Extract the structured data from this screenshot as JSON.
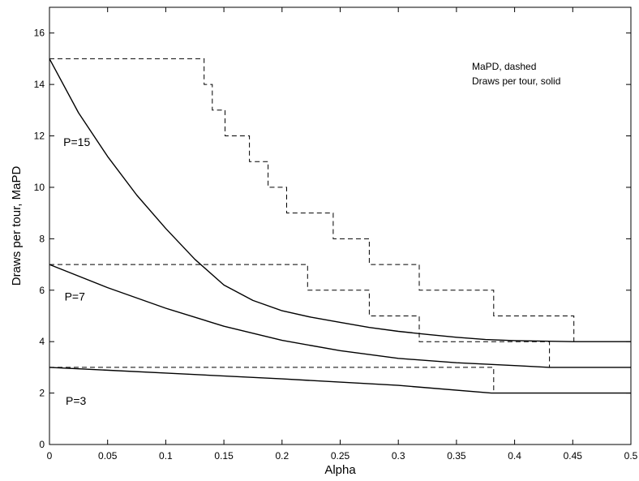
{
  "chart_data": {
    "type": "line",
    "title": "",
    "xlabel": "Alpha",
    "ylabel": "Draws per tour, MaPD",
    "xlim": [
      0,
      0.5
    ],
    "ylim": [
      0,
      17
    ],
    "xticks": [
      0,
      0.05,
      0.1,
      0.15,
      0.2,
      0.25,
      0.3,
      0.35,
      0.4,
      0.45,
      0.5
    ],
    "xtick_labels": [
      "0",
      "0.05",
      "0.1",
      "0.15",
      "0.2",
      "0.25",
      "0.3",
      "0.35",
      "0.4",
      "0.45",
      "0.5"
    ],
    "yticks": [
      0,
      2,
      4,
      6,
      8,
      10,
      12,
      14,
      16
    ],
    "ytick_labels": [
      "0",
      "2",
      "4",
      "6",
      "8",
      "10",
      "12",
      "14",
      "16"
    ],
    "grid": false,
    "legend_lines": [
      "MaPD, dashed",
      "Draws per tour, solid"
    ],
    "legend_position": "top-right",
    "series": [
      {
        "label": "P=15",
        "style": "solid",
        "x": [
          0,
          0.025,
          0.05,
          0.075,
          0.1,
          0.125,
          0.15,
          0.175,
          0.2,
          0.225,
          0.25,
          0.275,
          0.3,
          0.325,
          0.35,
          0.375,
          0.4,
          0.45,
          0.5
        ],
        "y": [
          15.0,
          12.9,
          11.2,
          9.7,
          8.4,
          7.2,
          6.2,
          5.6,
          5.2,
          4.95,
          4.75,
          4.55,
          4.4,
          4.28,
          4.17,
          4.08,
          4.04,
          4.0,
          4.0
        ]
      },
      {
        "label": "P=7",
        "style": "solid",
        "x": [
          0,
          0.05,
          0.1,
          0.15,
          0.2,
          0.25,
          0.3,
          0.35,
          0.4,
          0.43,
          0.5
        ],
        "y": [
          7.0,
          6.1,
          5.3,
          4.6,
          4.05,
          3.65,
          3.35,
          3.18,
          3.07,
          3.0,
          3.0
        ]
      },
      {
        "label": "P=3",
        "style": "solid",
        "x": [
          0,
          0.1,
          0.2,
          0.3,
          0.38,
          0.5
        ],
        "y": [
          3.0,
          2.78,
          2.55,
          2.3,
          2.0,
          2.0
        ]
      },
      {
        "label": "MaPD P=15",
        "style": "dashed",
        "x": [
          0,
          0.133,
          0.133,
          0.14,
          0.14,
          0.151,
          0.151,
          0.156,
          0.156,
          0.172,
          0.172,
          0.176,
          0.176,
          0.188,
          0.188,
          0.2,
          0.2,
          0.204,
          0.204,
          0.244,
          0.244,
          0.275,
          0.275,
          0.318,
          0.318,
          0.382,
          0.382,
          0.451,
          0.451
        ],
        "y": [
          15,
          15,
          14,
          14,
          13,
          13,
          12,
          12,
          12,
          12,
          11,
          11,
          11,
          11,
          10,
          10,
          10,
          10,
          9,
          9,
          8,
          8,
          7,
          7,
          6,
          6,
          5,
          5,
          4
        ]
      },
      {
        "label": "MaPD P=7",
        "style": "dashed",
        "x": [
          0,
          0.222,
          0.222,
          0.275,
          0.275,
          0.318,
          0.318,
          0.43,
          0.43
        ],
        "y": [
          7,
          7,
          6,
          6,
          5,
          5,
          4,
          4,
          3
        ]
      },
      {
        "label": "MaPD P=3",
        "style": "dashed",
        "x": [
          0,
          0.382,
          0.382
        ],
        "y": [
          3,
          3,
          2
        ]
      }
    ],
    "curve_labels": [
      {
        "text": "P=15",
        "x": 0.005,
        "y": 11.6
      },
      {
        "text": "P=7",
        "x": 0.006,
        "y": 5.6
      },
      {
        "text": "P=3",
        "x": 0.007,
        "y": 1.55
      }
    ]
  }
}
